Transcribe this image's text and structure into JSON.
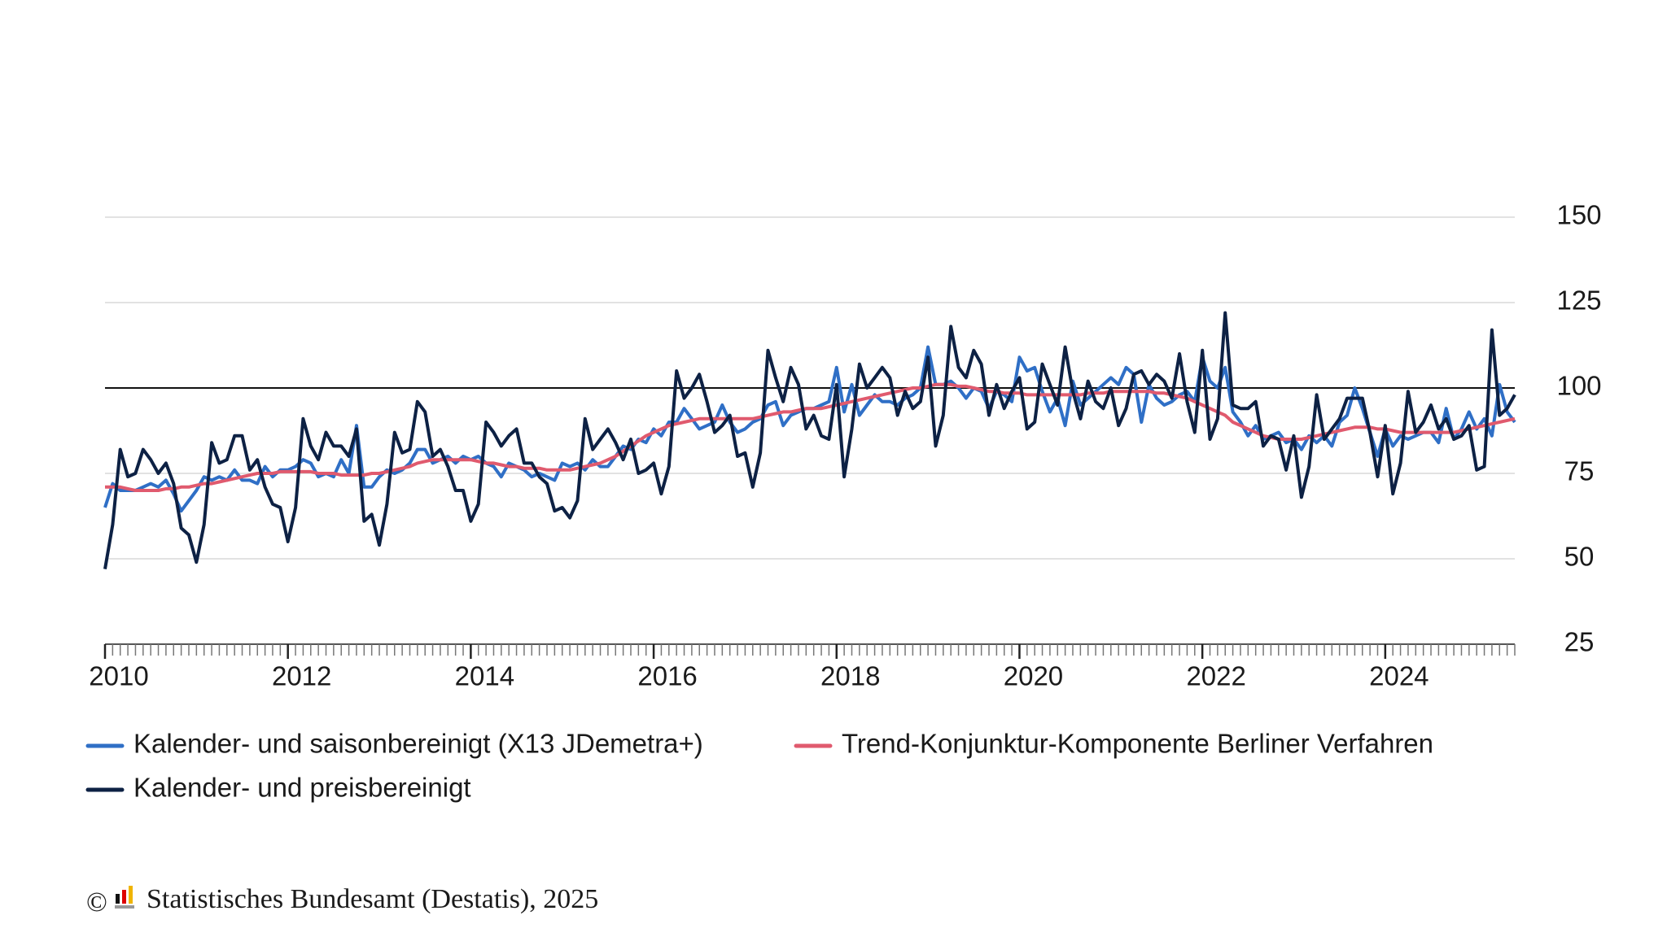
{
  "chart_data": {
    "type": "line",
    "x": [
      "2010-01",
      "2010-02",
      "2010-03",
      "2010-04",
      "2010-05",
      "2010-06",
      "2010-07",
      "2010-08",
      "2010-09",
      "2010-10",
      "2010-11",
      "2010-12",
      "2011-01",
      "2011-02",
      "2011-03",
      "2011-04",
      "2011-05",
      "2011-06",
      "2011-07",
      "2011-08",
      "2011-09",
      "2011-10",
      "2011-11",
      "2011-12",
      "2012-01",
      "2012-02",
      "2012-03",
      "2012-04",
      "2012-05",
      "2012-06",
      "2012-07",
      "2012-08",
      "2012-09",
      "2012-10",
      "2012-11",
      "2012-12",
      "2013-01",
      "2013-02",
      "2013-03",
      "2013-04",
      "2013-05",
      "2013-06",
      "2013-07",
      "2013-08",
      "2013-09",
      "2013-10",
      "2013-11",
      "2013-12",
      "2014-01",
      "2014-02",
      "2014-03",
      "2014-04",
      "2014-05",
      "2014-06",
      "2014-07",
      "2014-08",
      "2014-09",
      "2014-10",
      "2014-11",
      "2014-12",
      "2015-01",
      "2015-02",
      "2015-03",
      "2015-04",
      "2015-05",
      "2015-06",
      "2015-07",
      "2015-08",
      "2015-09",
      "2015-10",
      "2015-11",
      "2015-12",
      "2016-01",
      "2016-02",
      "2016-03",
      "2016-04",
      "2016-05",
      "2016-06",
      "2016-07",
      "2016-08",
      "2016-09",
      "2016-10",
      "2016-11",
      "2016-12",
      "2017-01",
      "2017-02",
      "2017-03",
      "2017-04",
      "2017-05",
      "2017-06",
      "2017-07",
      "2017-08",
      "2017-09",
      "2017-10",
      "2017-11",
      "2017-12",
      "2018-01",
      "2018-02",
      "2018-03",
      "2018-04",
      "2018-05",
      "2018-06",
      "2018-07",
      "2018-08",
      "2018-09",
      "2018-10",
      "2018-11",
      "2018-12",
      "2019-01",
      "2019-02",
      "2019-03",
      "2019-04",
      "2019-05",
      "2019-06",
      "2019-07",
      "2019-08",
      "2019-09",
      "2019-10",
      "2019-11",
      "2019-12",
      "2020-01",
      "2020-02",
      "2020-03",
      "2020-04",
      "2020-05",
      "2020-06",
      "2020-07",
      "2020-08",
      "2020-09",
      "2020-10",
      "2020-11",
      "2020-12",
      "2021-01",
      "2021-02",
      "2021-03",
      "2021-04",
      "2021-05",
      "2021-06",
      "2021-07",
      "2021-08",
      "2021-09",
      "2021-10",
      "2021-11",
      "2021-12",
      "2022-01",
      "2022-02",
      "2022-03",
      "2022-04",
      "2022-05",
      "2022-06",
      "2022-07",
      "2022-08",
      "2022-09",
      "2022-10",
      "2022-11",
      "2022-12",
      "2023-01",
      "2023-02",
      "2023-03",
      "2023-04",
      "2023-05",
      "2023-06",
      "2023-07",
      "2023-08",
      "2023-09",
      "2023-10",
      "2023-11",
      "2023-12",
      "2024-01",
      "2024-02",
      "2024-03",
      "2024-04",
      "2024-05",
      "2024-06",
      "2024-07",
      "2024-08",
      "2024-09",
      "2024-10",
      "2024-11",
      "2024-12",
      "2025-01",
      "2025-02",
      "2025-03",
      "2025-04",
      "2025-05",
      "2025-06"
    ],
    "series": [
      {
        "name": "Kalender- und saisonbereinigt (X13 JDemetra+)",
        "color": "#2f6fc6",
        "values": [
          65,
          72,
          70,
          70,
          70,
          71,
          72,
          71,
          73,
          69,
          64,
          67,
          70,
          74,
          73,
          74,
          73,
          76,
          73,
          73,
          72,
          77,
          74,
          76,
          76,
          77,
          79,
          78,
          74,
          75,
          74,
          79,
          75,
          89,
          71,
          71,
          74,
          76,
          75,
          76,
          78,
          82,
          82,
          78,
          79,
          80,
          78,
          80,
          79,
          80,
          78,
          77,
          74,
          78,
          77,
          76,
          74,
          75,
          74,
          73,
          78,
          77,
          78,
          76,
          79,
          77,
          77,
          80,
          83,
          82,
          85,
          84,
          88,
          86,
          90,
          90,
          94,
          91,
          88,
          89,
          90,
          95,
          90,
          87,
          88,
          90,
          91,
          95,
          96,
          89,
          92,
          93,
          94,
          94,
          95,
          96,
          106,
          93,
          101,
          92,
          95,
          98,
          96,
          96,
          95,
          97,
          98,
          100,
          112,
          101,
          101,
          102,
          100,
          97,
          100,
          99,
          94,
          99,
          98,
          96,
          109,
          105,
          106,
          99,
          93,
          97,
          89,
          102,
          95,
          97,
          99,
          101,
          103,
          101,
          106,
          104,
          90,
          101,
          97,
          95,
          96,
          98,
          99,
          96,
          109,
          102,
          100,
          106,
          93,
          90,
          86,
          89,
          85,
          86,
          87,
          84,
          85,
          82,
          86,
          84,
          86,
          83,
          90,
          92,
          100,
          94,
          87,
          80,
          88,
          83,
          86,
          85,
          86,
          87,
          87,
          84,
          94,
          85,
          88,
          93,
          88,
          91,
          86,
          101,
          93,
          90
        ]
      },
      {
        "name": "Trend-Konjunktur-Komponente Berliner Verfahren",
        "color": "#e05a6e",
        "values": [
          71,
          71,
          71,
          70.5,
          70,
          70,
          70,
          70,
          70.5,
          70.5,
          71,
          71,
          71.5,
          72,
          72,
          72.5,
          73,
          73.5,
          74,
          74.5,
          75,
          75,
          75,
          75.5,
          75.5,
          75.5,
          75.5,
          75.5,
          75,
          75,
          75,
          74.5,
          74.5,
          74.5,
          74.5,
          75,
          75,
          75.5,
          76,
          76.5,
          77,
          78,
          78.5,
          79,
          79,
          79,
          79,
          79,
          79,
          78.5,
          78,
          78,
          77.5,
          77,
          77,
          76.5,
          76.5,
          76.5,
          76,
          76,
          76,
          76,
          76.5,
          77,
          77.5,
          78,
          79,
          80,
          81.5,
          83,
          84.5,
          86,
          87,
          88,
          89,
          89.5,
          90,
          90.5,
          91,
          91,
          91,
          91,
          91,
          91,
          91,
          91,
          91.5,
          92,
          92.5,
          93,
          93,
          93.5,
          94,
          94,
          94,
          94.5,
          95,
          95.5,
          96,
          96.5,
          97,
          97.5,
          98,
          98.5,
          99,
          99.5,
          100,
          100,
          100.5,
          101,
          101,
          101,
          100.5,
          100.5,
          100,
          99.5,
          99,
          99,
          98.5,
          98.5,
          98.5,
          98,
          98,
          98,
          98,
          98,
          98,
          98,
          98,
          98.5,
          98.5,
          98.5,
          99,
          99,
          99,
          99,
          99,
          99,
          98.5,
          98.5,
          98,
          97.5,
          97,
          96,
          95,
          94,
          93,
          92,
          90,
          89,
          88,
          87,
          86,
          85.5,
          85,
          85,
          85,
          85,
          85.5,
          86,
          86.5,
          87,
          87.5,
          88,
          88.5,
          88.5,
          88.5,
          88,
          88,
          87.5,
          87,
          87,
          87,
          87,
          87,
          87,
          87,
          87,
          87.5,
          88,
          88.5,
          89,
          89.5,
          90,
          90.5,
          91
        ]
      },
      {
        "name": "Kalender- und preisbereinigt",
        "color": "#0d2144",
        "values": [
          47,
          60,
          82,
          74,
          75,
          82,
          79,
          75,
          78,
          72,
          59,
          57,
          49,
          60,
          84,
          78,
          79,
          86,
          86,
          76,
          79,
          71,
          66,
          65,
          55,
          65,
          91,
          83,
          79,
          87,
          83,
          83,
          80,
          88,
          61,
          63,
          54,
          66,
          87,
          81,
          82,
          96,
          93,
          80,
          82,
          77,
          70,
          70,
          61,
          66,
          90,
          87,
          83,
          86,
          88,
          78,
          78,
          74,
          72,
          64,
          65,
          62,
          67,
          91,
          82,
          85,
          88,
          84,
          79,
          85,
          75,
          76,
          78,
          69,
          77,
          105,
          97,
          100,
          104,
          96,
          87,
          89,
          92,
          80,
          81,
          71,
          81,
          111,
          103,
          96,
          106,
          101,
          88,
          92,
          86,
          85,
          101,
          74,
          88,
          107,
          100,
          103,
          106,
          103,
          92,
          99,
          94,
          96,
          109,
          83,
          92,
          118,
          106,
          103,
          111,
          107,
          92,
          101,
          94,
          99,
          103,
          88,
          90,
          107,
          101,
          95,
          112,
          99,
          91,
          102,
          96,
          94,
          100,
          89,
          94,
          104,
          105,
          101,
          104,
          102,
          97,
          110,
          96,
          87,
          111,
          85,
          91,
          122,
          95,
          94,
          94,
          96,
          83,
          86,
          85,
          76,
          86,
          68,
          77,
          98,
          85,
          88,
          91,
          97,
          97,
          97,
          87,
          74,
          89,
          69,
          78,
          99,
          87,
          90,
          95,
          88,
          91,
          85,
          86,
          89,
          76,
          77,
          117,
          92,
          94,
          98
        ]
      }
    ],
    "ylim": [
      25,
      150
    ],
    "yticks": [
      25,
      50,
      75,
      100,
      125,
      150
    ],
    "grid": true,
    "reference_line": 100,
    "xticks": [
      {
        "value": "2010-01",
        "label": "2010"
      },
      {
        "value": "2012-01",
        "label": "2012"
      },
      {
        "value": "2014-01",
        "label": "2014"
      },
      {
        "value": "2016-01",
        "label": "2016"
      },
      {
        "value": "2018-01",
        "label": "2018"
      },
      {
        "value": "2020-01",
        "label": "2020"
      },
      {
        "value": "2022-01",
        "label": "2022"
      },
      {
        "value": "2024-01",
        "label": "2024"
      }
    ],
    "copyright": "©",
    "source": "Statistisches Bundesamt (Destatis), 2025"
  }
}
